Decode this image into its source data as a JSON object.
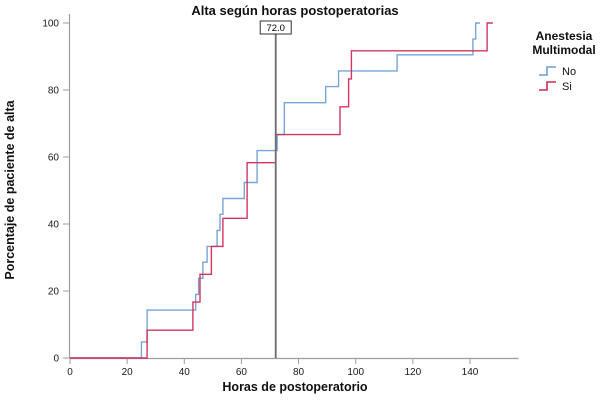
{
  "chart_data": {
    "type": "step",
    "title": "Alta según horas postoperatorias",
    "xlabel": "Horas de postoperatorio",
    "ylabel": "Porcentaje de paciente de alta",
    "xlim": [
      0,
      157
    ],
    "ylim": [
      0,
      100
    ],
    "xticks": [
      0,
      20,
      40,
      60,
      80,
      100,
      120,
      140
    ],
    "yticks": [
      0,
      20,
      40,
      60,
      80,
      100
    ],
    "grid": false,
    "reference_line": {
      "x": 72,
      "label": "72.0"
    },
    "legend": {
      "position": "right",
      "title": [
        "Anestesia",
        "Multimodal"
      ],
      "entries": [
        {
          "label": "No",
          "color": "#6fa0d8"
        },
        {
          "label": "Si",
          "color": "#d22a55"
        }
      ]
    },
    "series": [
      {
        "name": "No",
        "color": "#6fa0d8",
        "points": [
          [
            0,
            0
          ],
          [
            25,
            4.8
          ],
          [
            27,
            14.3
          ],
          [
            44,
            19.0
          ],
          [
            45,
            23.8
          ],
          [
            46.5,
            28.6
          ],
          [
            48,
            33.3
          ],
          [
            51.5,
            38.1
          ],
          [
            52.5,
            42.9
          ],
          [
            53.5,
            47.6
          ],
          [
            61,
            52.4
          ],
          [
            65.5,
            61.9
          ],
          [
            72.5,
            66.7
          ],
          [
            75,
            76.2
          ],
          [
            89.5,
            81.0
          ],
          [
            94,
            85.7
          ],
          [
            114.5,
            90.5
          ],
          [
            141,
            95.2
          ],
          [
            142,
            100
          ],
          [
            143.5,
            100
          ]
        ]
      },
      {
        "name": "Si",
        "color": "#d22a55",
        "points": [
          [
            0,
            0
          ],
          [
            27,
            8.3
          ],
          [
            43,
            16.7
          ],
          [
            45.5,
            25.0
          ],
          [
            49.5,
            33.3
          ],
          [
            53.5,
            41.7
          ],
          [
            62,
            58.3
          ],
          [
            72,
            66.7
          ],
          [
            94.5,
            75.0
          ],
          [
            97.5,
            83.3
          ],
          [
            98.5,
            91.7
          ],
          [
            146,
            100
          ],
          [
            148,
            100
          ]
        ]
      }
    ]
  }
}
